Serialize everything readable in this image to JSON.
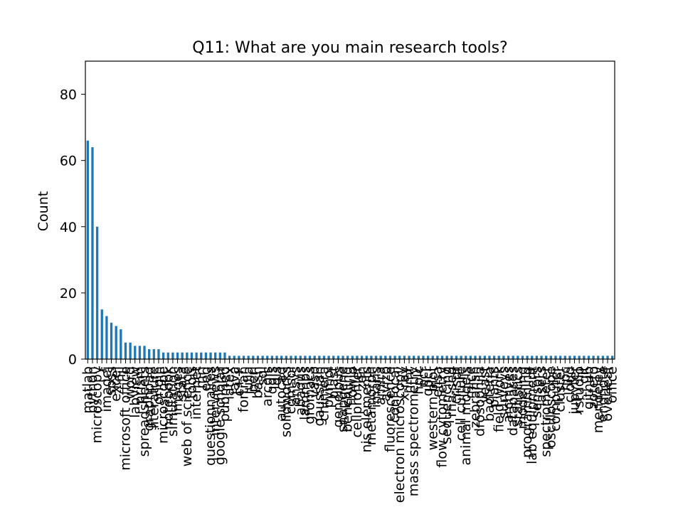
{
  "chart_data": {
    "type": "bar",
    "title": "Q11: What are you main research tools?",
    "xlabel": "",
    "ylabel": "Count",
    "ylim": [
      0,
      90
    ],
    "yticks": [
      0,
      20,
      40,
      60,
      80
    ],
    "grid": false,
    "legend": "none",
    "bar_color": "#1f77b4",
    "categories": [
      "matlab",
      "python",
      "microscopy",
      "r",
      "imagej",
      "spss",
      "excel",
      "fiji",
      "microsoft office",
      "word",
      "labview",
      "prism",
      "spreadsheets",
      "graphpad",
      "literature",
      "origin",
      "microscope",
      "notebook",
      "simulation",
      "images",
      "stata",
      "web of science",
      "tools",
      "internet",
      "mri",
      "eeg",
      "questionnaires",
      "interviews",
      "google scholar",
      "pubmed",
      "latex",
      "java",
      "c++",
      "fortran",
      "julia",
      "perl",
      "bash",
      "sql",
      "arcgis",
      "qgis",
      "gis",
      "autocad",
      "solidworks",
      "comsol",
      "ansys",
      "abaqus",
      "lammps",
      "gromacs",
      "vasp",
      "gaussian",
      "chimera",
      "pymol",
      "blast",
      "geneious",
      "snapgene",
      "benchling",
      "flowjo",
      "cellprofiler",
      "zen",
      "nis elements",
      "metamorph",
      "imaris",
      "amira",
      "avizo",
      "fluorescence",
      "confocal",
      "electron microscopy",
      "x-ray",
      "nmr",
      "mass spectrometry",
      "hplc",
      "pcr",
      "qpcr",
      "western blot",
      "elisa",
      "flow cytometry",
      "sequencing",
      "rna-seq",
      "crispr",
      "cell culture",
      "animal models",
      "mice",
      "zebrafish",
      "drosophila",
      "yeast",
      "bacteria",
      "plants",
      "field work",
      "surveys",
      "archives",
      "databases",
      "statistics",
      "modeling",
      "programming",
      "lab equipment",
      "sensors",
      "lasers",
      "spectrometer",
      "oscilloscope",
      "computer",
      "cluster",
      "hpc",
      "cloud",
      "jupyter",
      "rstudio",
      "git",
      "github",
      "zotero",
      "mendeley",
      "endnote",
      "overleaf",
      "office"
    ],
    "values": [
      66,
      64,
      40,
      15,
      13,
      11,
      10,
      9,
      5,
      5,
      4,
      4,
      4,
      3,
      3,
      3,
      2,
      2,
      2,
      2,
      2,
      2,
      2,
      2,
      2,
      2,
      2,
      2,
      2,
      2,
      1,
      1,
      1,
      1,
      1,
      1,
      1,
      1,
      1,
      1,
      1,
      1,
      1,
      1,
      1,
      1,
      1,
      1,
      1,
      1,
      1,
      1,
      1,
      1,
      1,
      1,
      1,
      1,
      1,
      1,
      1,
      1,
      1,
      1,
      1,
      1,
      1,
      1,
      1,
      1,
      1,
      1,
      1,
      1,
      1,
      1,
      1,
      1,
      1,
      1,
      1,
      1,
      1,
      1,
      1,
      1,
      1,
      1,
      1,
      1,
      1,
      1,
      1,
      1,
      1,
      1,
      1,
      1,
      1,
      1,
      1,
      1,
      1,
      1,
      1,
      1,
      1,
      1,
      1,
      1,
      1,
      1
    ]
  }
}
